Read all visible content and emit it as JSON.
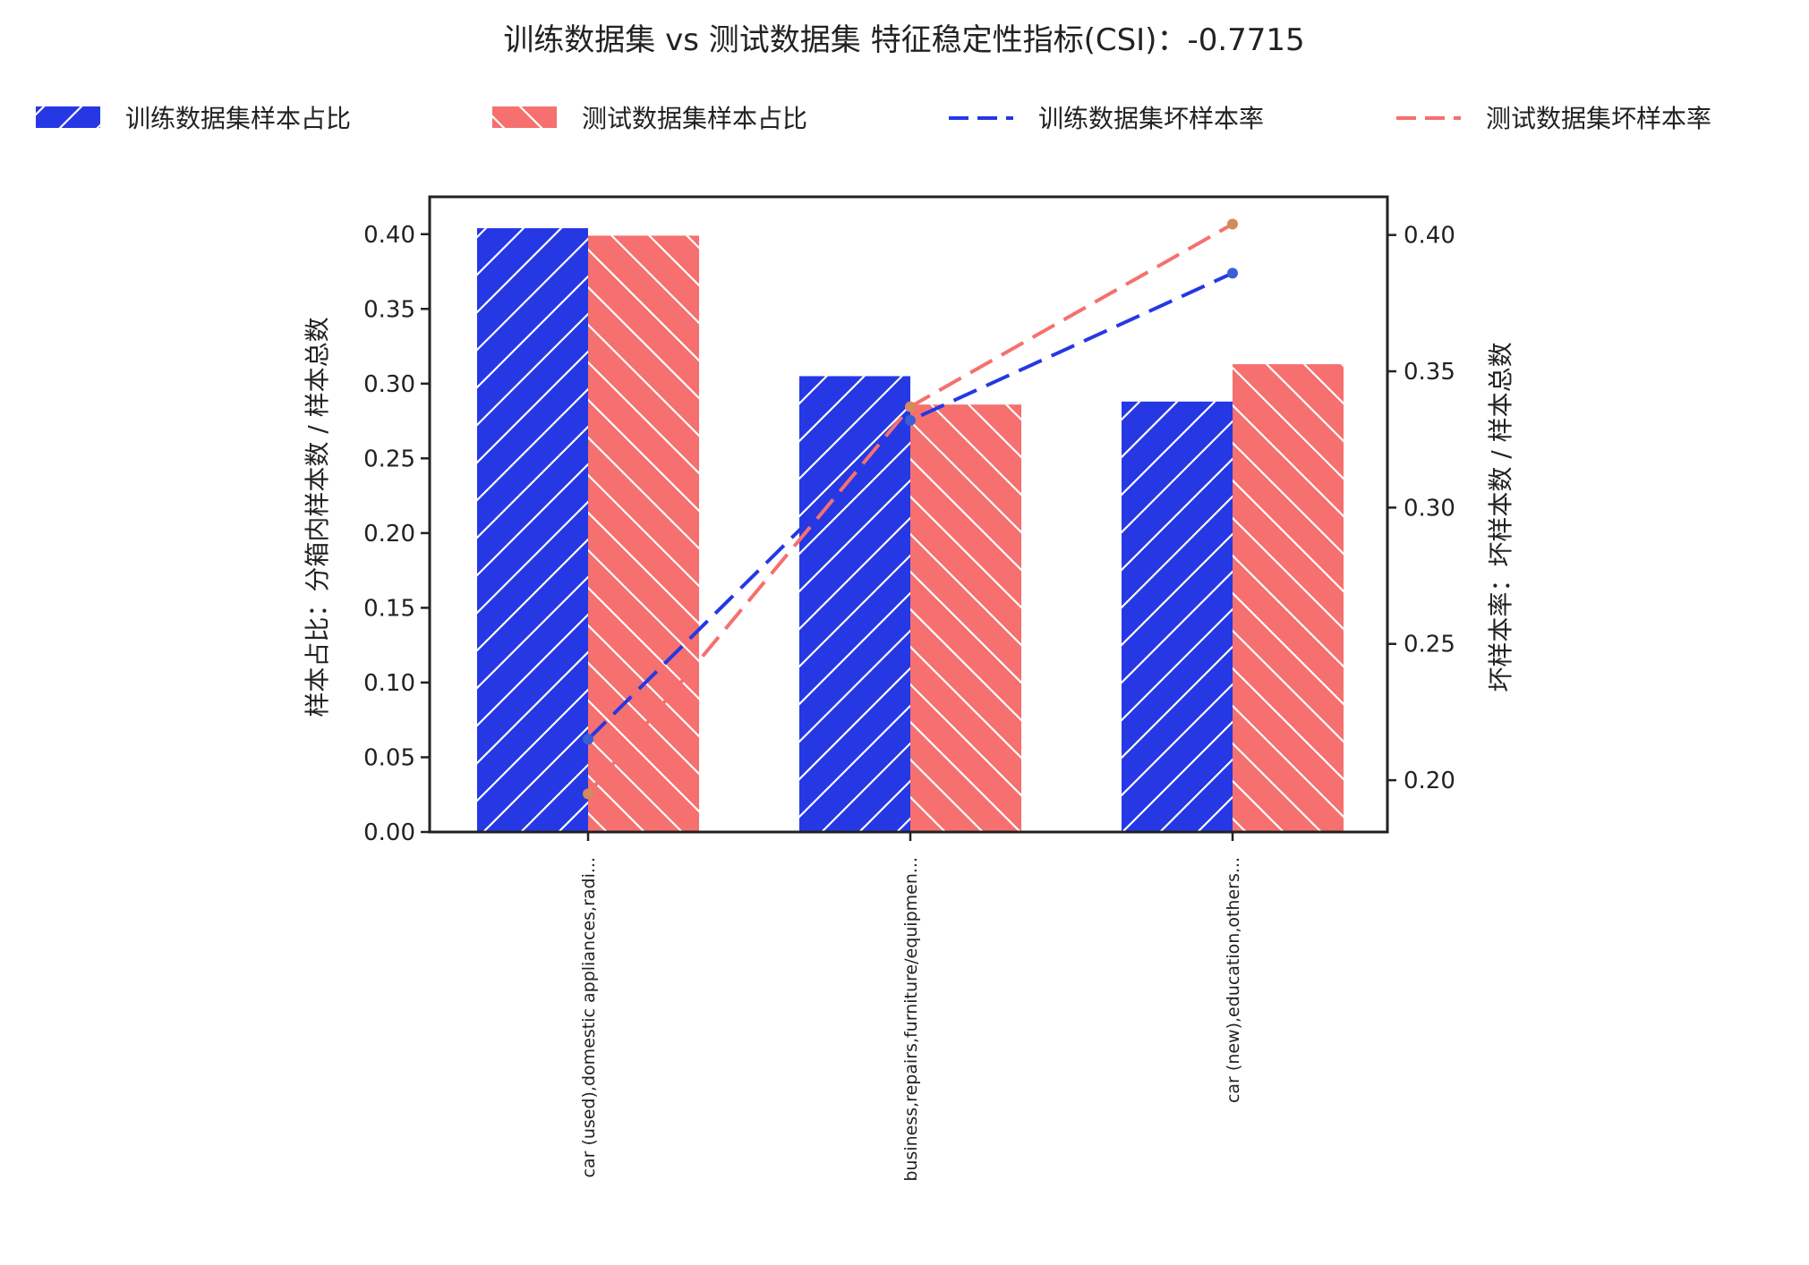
{
  "chart_data": {
    "type": "bar",
    "title": "训练数据集 vs 测试数据集 特征稳定性指标(CSI)：-0.7715",
    "categories": [
      "car (used),domestic appliances,radi...",
      "business,repairs,furniture/equipmen...",
      "car (new),education,others..."
    ],
    "series": [
      {
        "name": "训练数据集样本占比",
        "kind": "bar",
        "axis": "left",
        "color": "#2538e4",
        "hatch": "/",
        "values": [
          0.404,
          0.305,
          0.288
        ]
      },
      {
        "name": "测试数据集样本占比",
        "kind": "bar",
        "axis": "left",
        "color": "#f5706e",
        "hatch": "\\",
        "values": [
          0.399,
          0.286,
          0.313
        ]
      },
      {
        "name": "训练数据集坏样本率",
        "kind": "line",
        "axis": "right",
        "color": "#2538e4",
        "dash": "dashed",
        "values": [
          0.215,
          0.332,
          0.386
        ]
      },
      {
        "name": "测试数据集坏样本率",
        "kind": "line",
        "axis": "right",
        "color": "#f5706e",
        "dash": "dashed",
        "values": [
          0.195,
          0.337,
          0.404
        ]
      }
    ],
    "ylabel_left": "样本占比：分箱内样本数 / 样本总数",
    "ylabel_right": "坏样本率：坏样本数 / 样本总数",
    "xlabel": "",
    "ylim_left": [
      0,
      0.425
    ],
    "ylim_right": [
      0.181,
      0.414
    ],
    "yticks_left": [
      0.0,
      0.05,
      0.1,
      0.15,
      0.2,
      0.25,
      0.3,
      0.35,
      0.4
    ],
    "yticks_left_labels": [
      "0.00",
      "0.05",
      "0.10",
      "0.15",
      "0.20",
      "0.25",
      "0.30",
      "0.35",
      "0.40"
    ],
    "yticks_right": [
      0.2,
      0.25,
      0.3,
      0.35,
      0.4
    ],
    "yticks_right_labels": [
      "0.20",
      "0.25",
      "0.30",
      "0.35",
      "0.40"
    ],
    "legend_position": "top",
    "grid": false,
    "point_marker_color": "#d48a5a"
  }
}
